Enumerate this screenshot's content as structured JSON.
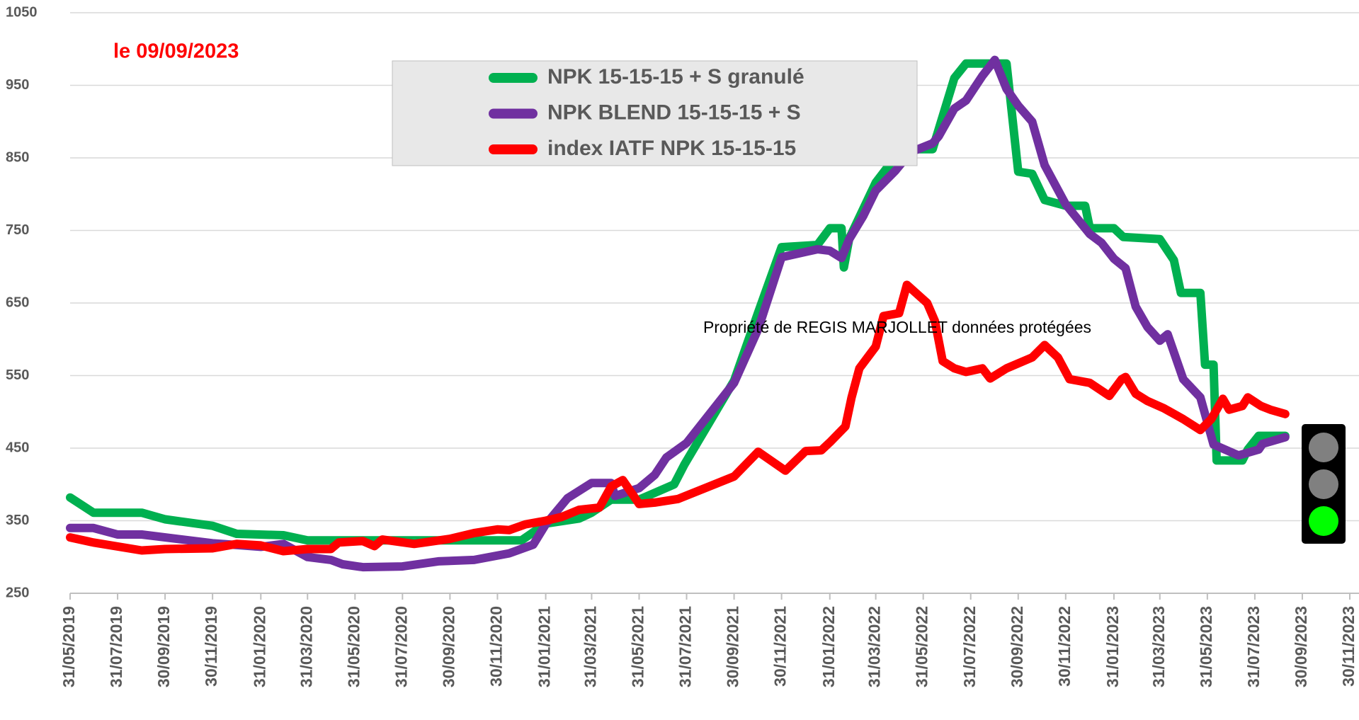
{
  "chart_data": {
    "type": "line",
    "annotations": [
      "le 09/09/2023",
      "Propriété de REGIS MARJOLLET données protégées"
    ],
    "xlim": [
      "31/05/2019",
      "30/11/2023"
    ],
    "xticks": [
      "31/05/2019",
      "31/07/2019",
      "30/09/2019",
      "30/11/2019",
      "31/01/2020",
      "31/03/2020",
      "31/05/2020",
      "31/07/2020",
      "30/09/2020",
      "30/11/2020",
      "31/01/2021",
      "31/03/2021",
      "31/05/2021",
      "31/07/2021",
      "30/09/2021",
      "30/11/2021",
      "31/01/2022",
      "31/03/2022",
      "31/05/2022",
      "31/07/2022",
      "30/09/2022",
      "30/11/2022",
      "31/01/2023",
      "31/03/2023",
      "31/05/2023",
      "31/07/2023",
      "30/09/2023",
      "30/11/2023"
    ],
    "ylim": [
      250,
      1050
    ],
    "yticks": [
      250,
      350,
      450,
      550,
      650,
      750,
      850,
      950,
      1050
    ],
    "grid": true,
    "series": [
      {
        "name": "NPK 15-15-15 + S granulé",
        "color": "#00b050",
        "x": [
          "31/05/2019",
          "30/06/2019",
          "31/08/2019",
          "30/09/2019",
          "30/11/2019",
          "31/12/2019",
          "29/02/2020",
          "31/03/2020",
          "31/12/2020",
          "31/01/2021",
          "15/03/2021",
          "31/03/2021",
          "25/04/2021",
          "31/05/2021",
          "15/07/2021",
          "28/07/2021",
          "30/09/2021",
          "31/10/2021",
          "30/11/2021",
          "15/01/2022",
          "31/01/2022",
          "15/02/2022",
          "18/02/2022",
          "25/02/2022",
          "31/03/2022",
          "30/04/2022",
          "25/05/2022",
          "12/06/2022",
          "10/07/2022",
          "25/07/2022",
          "15/09/2022",
          "30/09/2022",
          "18/10/2022",
          "03/11/2022",
          "30/11/2022",
          "25/12/2022",
          "31/12/2022",
          "31/01/2023",
          "12/02/2023",
          "31/03/2023",
          "18/04/2023",
          "27/04/2023",
          "22/05/2023",
          "28/05/2023",
          "08/06/2023",
          "12/06/2023",
          "15/07/2023",
          "22/07/2023",
          "05/08/2023",
          "08/09/2023"
        ],
        "values": [
          382,
          361,
          361,
          352,
          343,
          332,
          330,
          323,
          323,
          346,
          353,
          361,
          379,
          379,
          400,
          427,
          543,
          637,
          727,
          730,
          753,
          753,
          699,
          739,
          816,
          858,
          862,
          862,
          960,
          980,
          980,
          831,
          828,
          792,
          784,
          784,
          753,
          753,
          741,
          738,
          709,
          664,
          664,
          565,
          565,
          433,
          433,
          448,
          467,
          467
        ]
      },
      {
        "name": "NPK  BLEND 15-15-15 + S",
        "color": "#7030a0",
        "x": [
          "31/05/2019",
          "30/06/2019",
          "31/07/2019",
          "31/08/2019",
          "30/11/2019",
          "31/01/2020",
          "29/02/2020",
          "31/03/2020",
          "30/04/2020",
          "15/05/2020",
          "10/06/2020",
          "31/07/2020",
          "15/09/2020",
          "31/10/2020",
          "15/12/2020",
          "15/01/2021",
          "31/01/2021",
          "28/02/2021",
          "31/03/2021",
          "25/04/2021",
          "30/04/2021",
          "31/05/2021",
          "20/06/2021",
          "05/07/2021",
          "31/07/2021",
          "30/09/2021",
          "31/10/2021",
          "30/11/2021",
          "15/01/2022",
          "31/01/2022",
          "15/02/2022",
          "25/02/2022",
          "15/03/2022",
          "31/03/2022",
          "25/04/2022",
          "15/05/2022",
          "12/06/2022",
          "20/06/2022",
          "10/07/2022",
          "25/07/2022",
          "15/08/2022",
          "31/08/2022",
          "15/09/2022",
          "30/09/2022",
          "18/10/2022",
          "03/11/2022",
          "30/11/2022",
          "31/12/2022",
          "15/01/2023",
          "31/01/2023",
          "15/02/2023",
          "28/02/2023",
          "15/03/2023",
          "31/03/2023",
          "10/04/2023",
          "30/04/2023",
          "22/05/2023",
          "08/06/2023",
          "10/07/2023",
          "05/08/2023",
          "10/08/2023",
          "08/09/2023"
        ],
        "values": [
          340,
          340,
          331,
          331,
          319,
          314,
          318,
          300,
          296,
          290,
          286,
          287,
          294,
          296,
          305,
          317,
          345,
          381,
          402,
          402,
          384,
          395,
          413,
          437,
          457,
          540,
          614,
          713,
          724,
          722,
          712,
          738,
          770,
          805,
          832,
          858,
          870,
          880,
          918,
          929,
          963,
          985,
          945,
          922,
          900,
          840,
          786,
          745,
          733,
          711,
          698,
          645,
          617,
          598,
          607,
          545,
          520,
          455,
          440,
          448,
          456,
          465
        ]
      },
      {
        "name": "index IATF NPK 15-15-15",
        "color": "#ff0000",
        "x": [
          "31/05/2019",
          "30/06/2019",
          "31/08/2019",
          "30/09/2019",
          "30/11/2019",
          "31/12/2019",
          "31/01/2020",
          "29/02/2020",
          "31/03/2020",
          "30/04/2020",
          "10/05/2020",
          "10/06/2020",
          "25/06/2020",
          "05/07/2020",
          "15/08/2020",
          "30/09/2020",
          "31/10/2020",
          "30/11/2020",
          "15/12/2020",
          "05/01/2021",
          "31/01/2021",
          "20/02/2021",
          "15/03/2021",
          "10/04/2021",
          "25/04/2021",
          "10/05/2021",
          "31/05/2021",
          "20/06/2021",
          "20/07/2021",
          "30/09/2021",
          "31/10/2021",
          "05/12/2021",
          "31/12/2021",
          "20/01/2022",
          "31/01/2022",
          "20/02/2022",
          "28/02/2022",
          "10/03/2022",
          "31/03/2022",
          "10/04/2022",
          "30/04/2022",
          "10/05/2022",
          "05/06/2022",
          "15/06/2022",
          "25/06/2022",
          "10/07/2022",
          "25/07/2022",
          "15/08/2022",
          "25/08/2022",
          "15/09/2022",
          "18/10/2022",
          "03/11/2022",
          "20/11/2022",
          "05/12/2022",
          "31/12/2022",
          "25/01/2023",
          "10/02/2023",
          "15/02/2023",
          "28/02/2023",
          "15/03/2023",
          "05/04/2023",
          "30/04/2023",
          "22/05/2023",
          "05/06/2023",
          "20/06/2023",
          "28/06/2023",
          "15/07/2023",
          "22/07/2023",
          "08/08/2023",
          "20/08/2023",
          "08/09/2023"
        ],
        "values": [
          327,
          320,
          309,
          311,
          312,
          318,
          316,
          308,
          311,
          311,
          320,
          322,
          315,
          324,
          318,
          325,
          333,
          338,
          337,
          345,
          350,
          355,
          365,
          368,
          397,
          406,
          373,
          375,
          380,
          411,
          445,
          419,
          446,
          447,
          458,
          480,
          520,
          560,
          590,
          632,
          636,
          675,
          650,
          625,
          570,
          560,
          555,
          560,
          546,
          560,
          575,
          592,
          575,
          545,
          540,
          522,
          545,
          548,
          525,
          515,
          505,
          490,
          475,
          490,
          518,
          503,
          508,
          520,
          508,
          503,
          497
        ]
      }
    ]
  }
}
